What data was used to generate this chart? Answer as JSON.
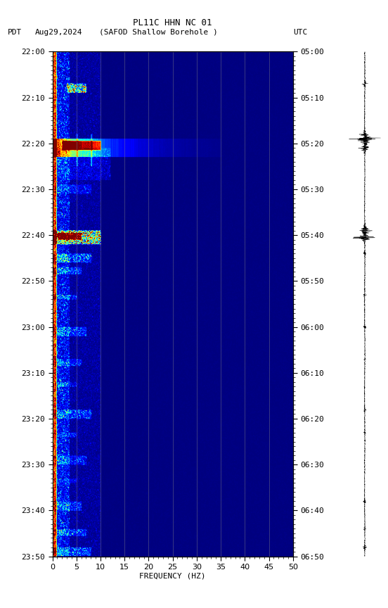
{
  "title_line1": "PL11C HHN NC 01",
  "xlabel": "FREQUENCY (HZ)",
  "freq_min": 0,
  "freq_max": 50,
  "ytick_pdt": [
    "22:00",
    "22:10",
    "22:20",
    "22:30",
    "22:40",
    "22:50",
    "23:00",
    "23:10",
    "23:20",
    "23:30",
    "23:40",
    "23:50"
  ],
  "ytick_utc": [
    "05:00",
    "05:10",
    "05:20",
    "05:30",
    "05:40",
    "05:50",
    "06:00",
    "06:10",
    "06:20",
    "06:30",
    "06:40",
    "06:50"
  ],
  "xticks": [
    0,
    5,
    10,
    15,
    20,
    25,
    30,
    35,
    40,
    45,
    50
  ],
  "fig_bg": "#ffffff",
  "colormap": "jet"
}
